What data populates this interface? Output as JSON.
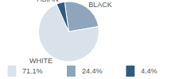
{
  "chart_data": {
    "type": "pie",
    "categories": [
      "WHITE",
      "BLACK",
      "ASIAN"
    ],
    "values": [
      71.1,
      24.4,
      4.4
    ],
    "value_labels": [
      "71.1%",
      "24.4%",
      "4.4%"
    ],
    "colors": [
      "#d9e2eb",
      "#8ea5bc",
      "#2f5b82"
    ]
  }
}
